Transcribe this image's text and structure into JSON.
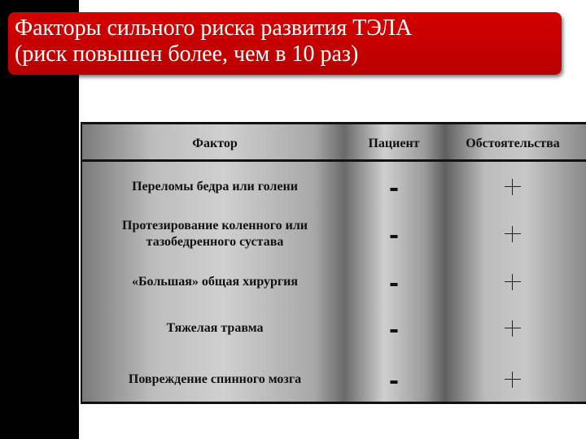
{
  "title": {
    "line1": "Факторы сильного риска развития ТЭЛА",
    "line2": "(риск повышен более, чем в 10 раз)"
  },
  "colors": {
    "title_bg": "#c80000",
    "title_text": "#ffffff",
    "left_bar": "#000000"
  },
  "table": {
    "headers": [
      "Фактор",
      "Пациент",
      "Обстоятельства"
    ],
    "rows": [
      {
        "factor": "Переломы бедра или голени",
        "patient": "-",
        "circumstance": "+"
      },
      {
        "factor": "Протезирование коленного или\nтазобедренного сустава",
        "patient": "-",
        "circumstance": "+"
      },
      {
        "factor": "«Большая» общая хирургия",
        "patient": "-",
        "circumstance": "+"
      },
      {
        "factor": "Тяжелая травма",
        "patient": "-",
        "circumstance": "+"
      },
      {
        "factor": "Повреждение спинного мозга",
        "patient": "-",
        "circumstance": "+"
      }
    ]
  }
}
